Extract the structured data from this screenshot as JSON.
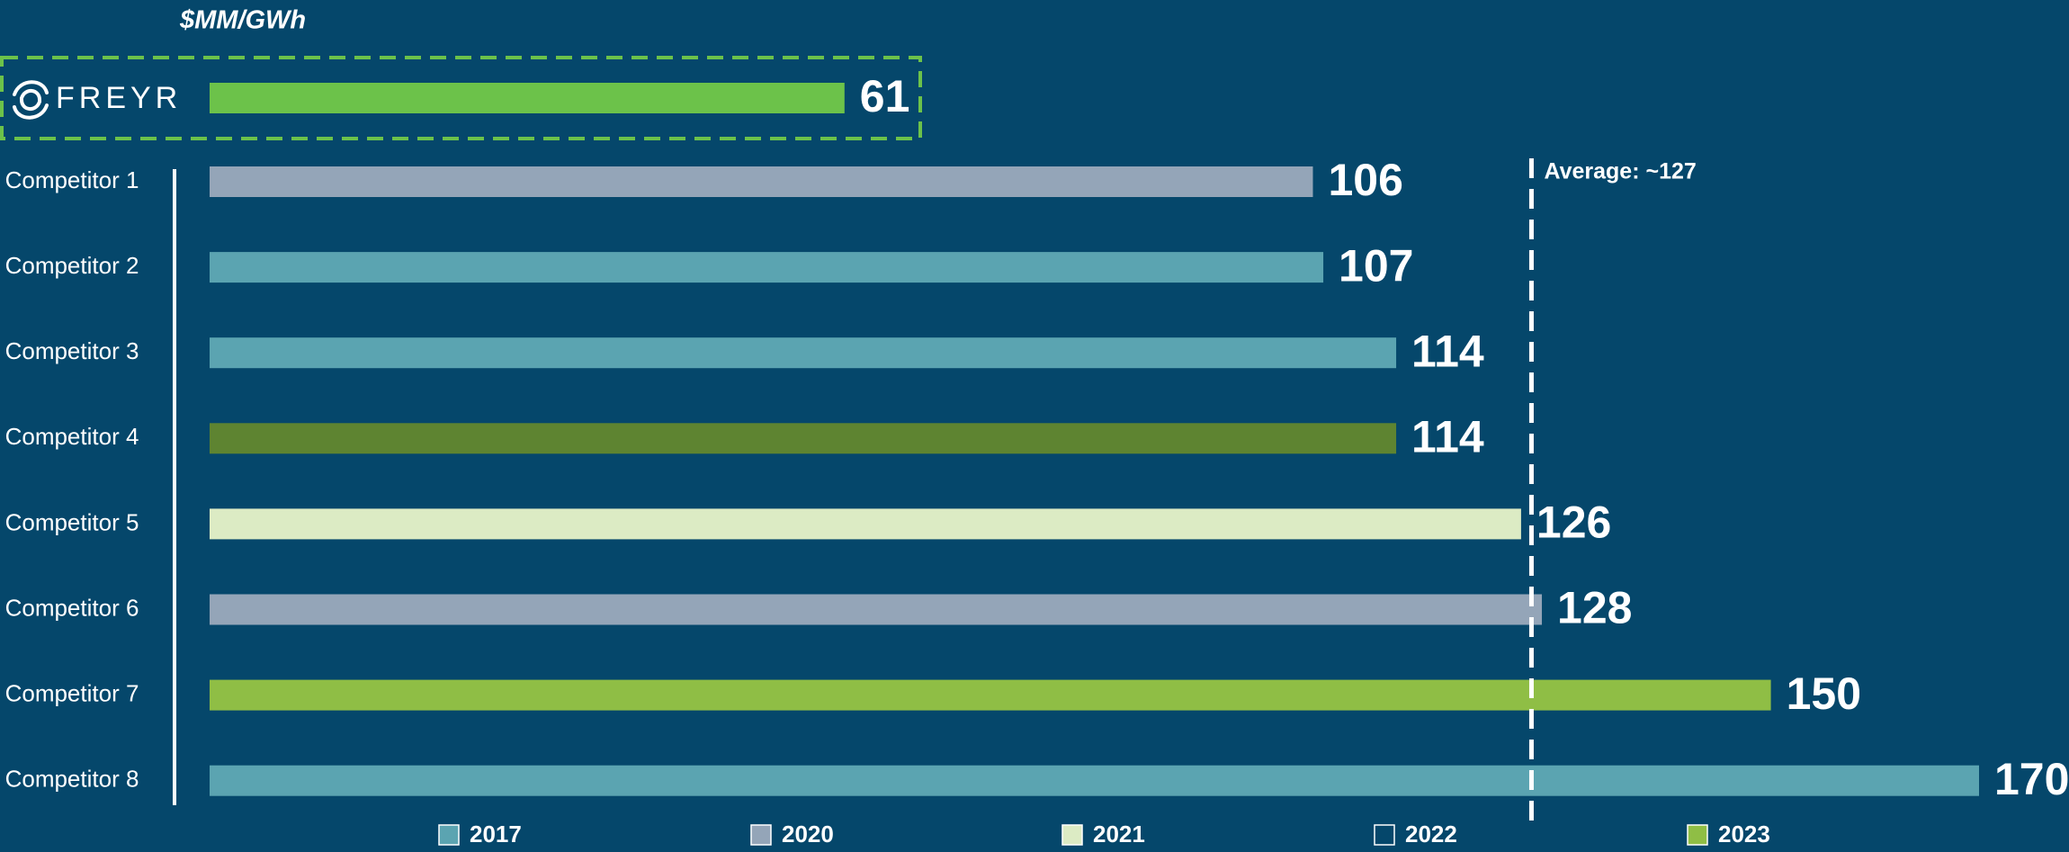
{
  "chart_data": {
    "type": "bar",
    "orientation": "horizontal",
    "unit_label": "$MM/GWh",
    "categories": [
      "FREYR",
      "Competitor 1",
      "Competitor 2",
      "Competitor 3",
      "Competitor 4",
      "Competitor 5",
      "Competitor 6",
      "Competitor 7",
      "Competitor 8"
    ],
    "values": [
      61,
      106,
      107,
      114,
      114,
      126,
      128,
      150,
      170
    ],
    "colors": [
      "#6cc24a",
      "#94a5b8",
      "#5ba4b1",
      "#5ba4b1",
      "#5e8431",
      "#dcebc4",
      "#94a5b8",
      "#8fbe45",
      "#5ba4b1"
    ],
    "annotation": {
      "text": "Average: ~127",
      "value": 127
    },
    "legend": [
      {
        "name": "2017",
        "color": "#5ba4b1"
      },
      {
        "name": "2020",
        "color": "#94a5b8"
      },
      {
        "name": "2021",
        "color": "#dcebc4"
      },
      {
        "name": "2022",
        "color": "none"
      },
      {
        "name": "2023",
        "color": "#8fbe45"
      }
    ]
  }
}
